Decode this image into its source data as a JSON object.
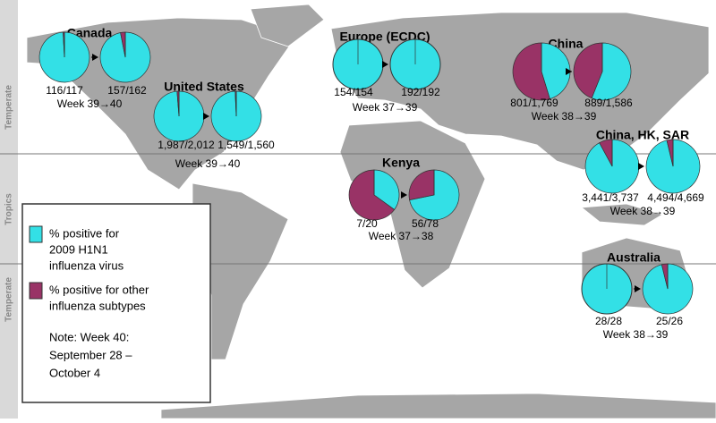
{
  "regions": [
    {
      "name": "Canada",
      "pies": [
        {
          "h1n1": 116,
          "total": 117,
          "label": "116/117"
        },
        {
          "h1n1": 157,
          "total": 162,
          "label": "157/162"
        }
      ],
      "week": "Week 39→40"
    },
    {
      "name": "United States",
      "pies": [
        {
          "h1n1": 1987,
          "total": 2012,
          "label": "1,987/2,012"
        },
        {
          "h1n1": 1549,
          "total": 1560,
          "label": "1,549/1,560"
        }
      ],
      "week": "Week 39→40"
    },
    {
      "name": "Europe (ECDC)",
      "pies": [
        {
          "h1n1": 154,
          "total": 154,
          "label": "154/154"
        },
        {
          "h1n1": 192,
          "total": 192,
          "label": "192/192"
        }
      ],
      "week": "Week 37→39"
    },
    {
      "name": "China",
      "pies": [
        {
          "h1n1": 801,
          "total": 1769,
          "label": "801/1,769"
        },
        {
          "h1n1": 889,
          "total": 1586,
          "label": "889/1,586"
        }
      ],
      "week": "Week 38→39"
    },
    {
      "name": "China, HK, SAR",
      "pies": [
        {
          "h1n1": 3441,
          "total": 3737,
          "label": "3,441/3,737"
        },
        {
          "h1n1": 4494,
          "total": 4669,
          "label": "4,494/4,669"
        }
      ],
      "week": "Week 38→39"
    },
    {
      "name": "Kenya",
      "pies": [
        {
          "h1n1": 7,
          "total": 20,
          "label": "7/20"
        },
        {
          "h1n1": 56,
          "total": 78,
          "label": "56/78"
        }
      ],
      "week": "Week 37→38"
    },
    {
      "name": "Australia",
      "pies": [
        {
          "h1n1": 28,
          "total": 28,
          "label": "28/28"
        },
        {
          "h1n1": 25,
          "total": 26,
          "label": "25/26"
        }
      ],
      "week": "Week 38→39"
    }
  ],
  "colors": {
    "h1n1": "#33e0e6",
    "other": "#993366"
  },
  "legend": {
    "items": [
      {
        "lines": [
          "% positive for",
          "2009 H1N1",
          "influenza virus"
        ]
      },
      {
        "lines": [
          "% positive for other",
          "influenza subtypes"
        ]
      }
    ],
    "note": [
      "Note: Week 40:",
      "September 28 –",
      "October 4"
    ]
  },
  "bands": [
    "Temperate",
    "Tropics",
    "Temperate"
  ]
}
